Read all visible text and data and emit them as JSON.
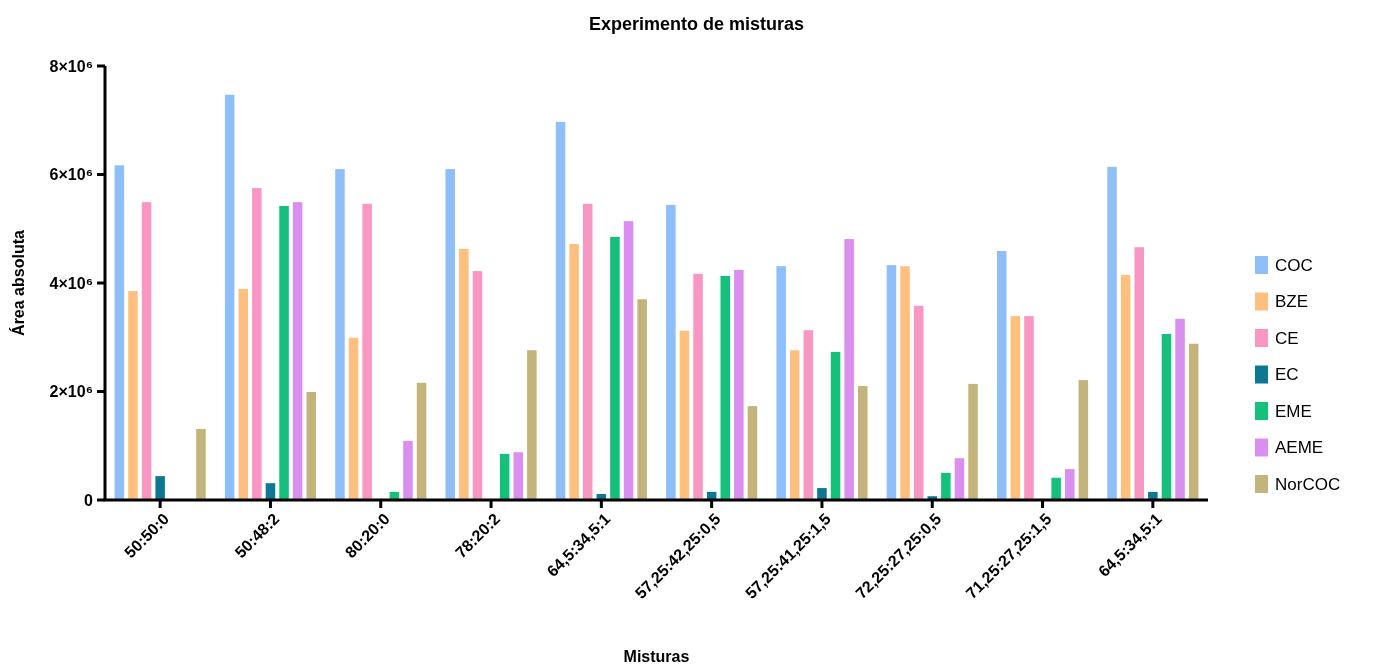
{
  "chart_data": {
    "type": "bar",
    "title": "Experimento de misturas",
    "xlabel": "Misturas",
    "ylabel": "Área absoluta",
    "categories": [
      "50:50:0",
      "50:48:2",
      "80:20:0",
      "78:20:2",
      "64,5:34,5:1",
      "57,25:42,25:0,5",
      "57,25:41,25:1,5",
      "72,25:27,25:0,5",
      "71,25:27,25:1,5",
      "64,5:34,5:1"
    ],
    "series": [
      {
        "name": "COC",
        "color": "#8fbff8",
        "values": [
          6170000,
          7470000,
          6100000,
          6100000,
          6970000,
          5440000,
          4310000,
          4330000,
          4590000,
          6140000
        ]
      },
      {
        "name": "BZE",
        "color": "#ffc07f",
        "values": [
          3850000,
          3890000,
          2990000,
          4630000,
          4720000,
          3120000,
          2760000,
          4310000,
          3390000,
          4150000
        ]
      },
      {
        "name": "CE",
        "color": "#f897c2",
        "values": [
          5490000,
          5750000,
          5460000,
          4220000,
          5460000,
          4170000,
          3130000,
          3580000,
          3390000,
          4660000
        ]
      },
      {
        "name": "EC",
        "color": "#0d7893",
        "values": [
          440000,
          310000,
          null,
          null,
          110000,
          150000,
          220000,
          70000,
          null,
          150000
        ]
      },
      {
        "name": "EME",
        "color": "#14c07a",
        "values": [
          null,
          5420000,
          150000,
          850000,
          4850000,
          4130000,
          2730000,
          500000,
          410000,
          3060000
        ]
      },
      {
        "name": "AEME",
        "color": "#d98ef0",
        "values": [
          null,
          5490000,
          1090000,
          880000,
          5140000,
          4240000,
          4810000,
          770000,
          570000,
          3340000
        ]
      },
      {
        "name": "NorCOC",
        "color": "#c2b47a",
        "values": [
          1310000,
          1990000,
          2160000,
          2760000,
          3700000,
          1730000,
          2100000,
          2140000,
          2210000,
          2880000
        ]
      }
    ],
    "ylim": [
      0,
      8000000
    ],
    "yticks": [
      {
        "value": 0,
        "label": "0"
      },
      {
        "value": 2000000,
        "label": "2×10⁶"
      },
      {
        "value": 4000000,
        "label": "4×10⁶"
      },
      {
        "value": 6000000,
        "label": "6×10⁶"
      },
      {
        "value": 8000000,
        "label": "8×10⁶"
      }
    ],
    "grid": false,
    "legend": "right"
  }
}
